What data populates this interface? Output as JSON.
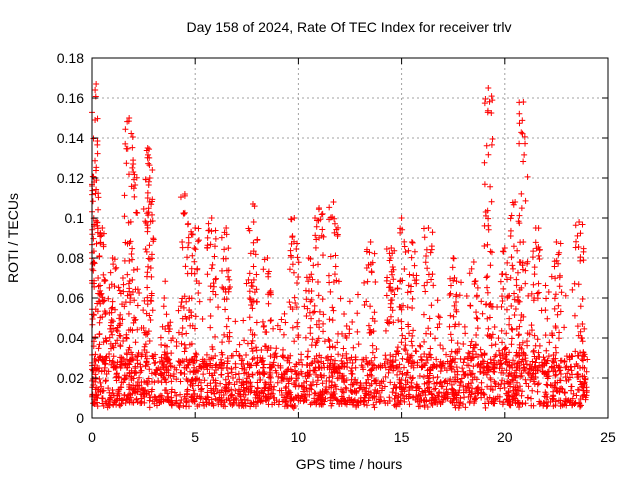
{
  "chart_data": {
    "type": "scatter",
    "title": "Day 158 of 2024, Rate Of TEC Index for receiver trlv",
    "xlabel": "GPS time / hours",
    "ylabel": "ROTI / TECUs",
    "xlim": [
      0,
      25
    ],
    "ylim": [
      0,
      0.18
    ],
    "xticks": [
      0,
      5,
      10,
      15,
      20,
      25
    ],
    "xtick_labels": [
      "0",
      "5",
      "10",
      "15",
      "20",
      "25"
    ],
    "yticks": [
      0,
      0.02,
      0.04,
      0.06,
      0.08,
      0.1,
      0.12,
      0.14,
      0.16,
      0.18
    ],
    "ytick_labels": [
      "0",
      "0.02",
      "0.04",
      "0.06",
      "0.08",
      "0.1",
      "0.12",
      "0.14",
      "0.16",
      "0.18"
    ],
    "grid": true,
    "marker": "+",
    "color": "#ff0000",
    "series": [
      {
        "name": "ROTI",
        "x_range": [
          0.0,
          24.0
        ],
        "baseline_range": [
          0.005,
          0.03
        ],
        "spikes": [
          {
            "x": 0.1,
            "y": 0.118
          },
          {
            "x": 0.2,
            "y": 0.167
          },
          {
            "x": 0.5,
            "y": 0.095
          },
          {
            "x": 1.0,
            "y": 0.08
          },
          {
            "x": 1.5,
            "y": 0.07
          },
          {
            "x": 1.8,
            "y": 0.15
          },
          {
            "x": 2.0,
            "y": 0.123
          },
          {
            "x": 2.7,
            "y": 0.135
          },
          {
            "x": 2.8,
            "y": 0.12
          },
          {
            "x": 3.5,
            "y": 0.06
          },
          {
            "x": 4.5,
            "y": 0.112
          },
          {
            "x": 5.0,
            "y": 0.095
          },
          {
            "x": 5.8,
            "y": 0.1
          },
          {
            "x": 6.5,
            "y": 0.095
          },
          {
            "x": 7.8,
            "y": 0.107
          },
          {
            "x": 8.5,
            "y": 0.08
          },
          {
            "x": 9.8,
            "y": 0.1
          },
          {
            "x": 10.5,
            "y": 0.08
          },
          {
            "x": 11.0,
            "y": 0.105
          },
          {
            "x": 11.7,
            "y": 0.108
          },
          {
            "x": 13.5,
            "y": 0.088
          },
          {
            "x": 14.5,
            "y": 0.085
          },
          {
            "x": 15.0,
            "y": 0.1
          },
          {
            "x": 15.5,
            "y": 0.088
          },
          {
            "x": 16.3,
            "y": 0.095
          },
          {
            "x": 17.5,
            "y": 0.08
          },
          {
            "x": 18.5,
            "y": 0.078
          },
          {
            "x": 19.2,
            "y": 0.165
          },
          {
            "x": 20.0,
            "y": 0.085
          },
          {
            "x": 20.5,
            "y": 0.108
          },
          {
            "x": 20.9,
            "y": 0.158
          },
          {
            "x": 21.5,
            "y": 0.095
          },
          {
            "x": 22.5,
            "y": 0.088
          },
          {
            "x": 23.6,
            "y": 0.098
          }
        ]
      }
    ]
  }
}
